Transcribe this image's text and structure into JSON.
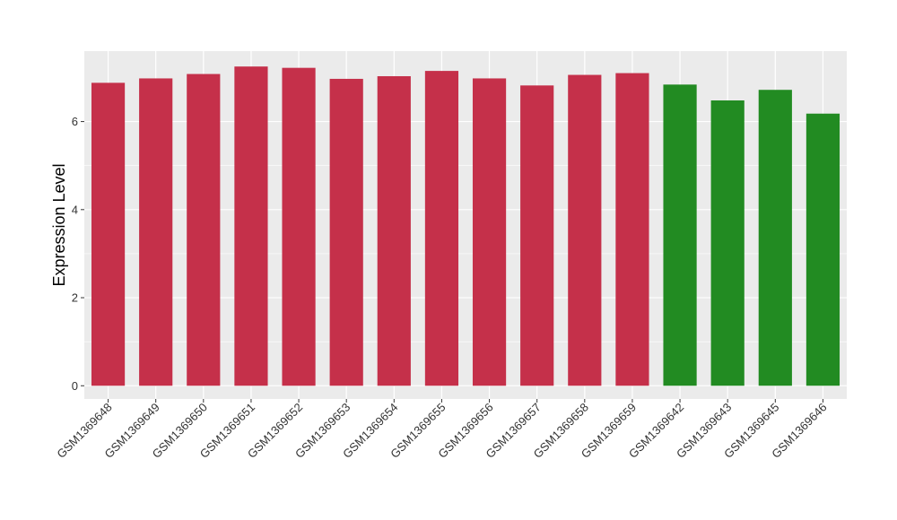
{
  "chart_data": {
    "type": "bar",
    "title": "",
    "xlabel": "",
    "ylabel": "Expression Level",
    "ylim": [
      -0.3,
      7.6
    ],
    "yticks": [
      0,
      2,
      4,
      6
    ],
    "grid": true,
    "legend": "none",
    "colors": {
      "group_a": "#c5304a",
      "group_b": "#228b22",
      "panel_bg": "#ebebeb",
      "grid": "#ffffff"
    },
    "categories": [
      "GSM1369648",
      "GSM1369649",
      "GSM1369650",
      "GSM1369651",
      "GSM1369652",
      "GSM1369653",
      "GSM1369654",
      "GSM1369655",
      "GSM1369656",
      "GSM1369657",
      "GSM1369658",
      "GSM1369659",
      "GSM1369642",
      "GSM1369643",
      "GSM1369645",
      "GSM1369646"
    ],
    "values": [
      6.88,
      6.98,
      7.08,
      7.25,
      7.22,
      6.97,
      7.03,
      7.15,
      6.98,
      6.82,
      7.06,
      7.1,
      6.84,
      6.48,
      6.72,
      6.18
    ],
    "bar_groups": [
      "group_a",
      "group_a",
      "group_a",
      "group_a",
      "group_a",
      "group_a",
      "group_a",
      "group_a",
      "group_a",
      "group_a",
      "group_a",
      "group_a",
      "group_b",
      "group_b",
      "group_b",
      "group_b"
    ]
  }
}
